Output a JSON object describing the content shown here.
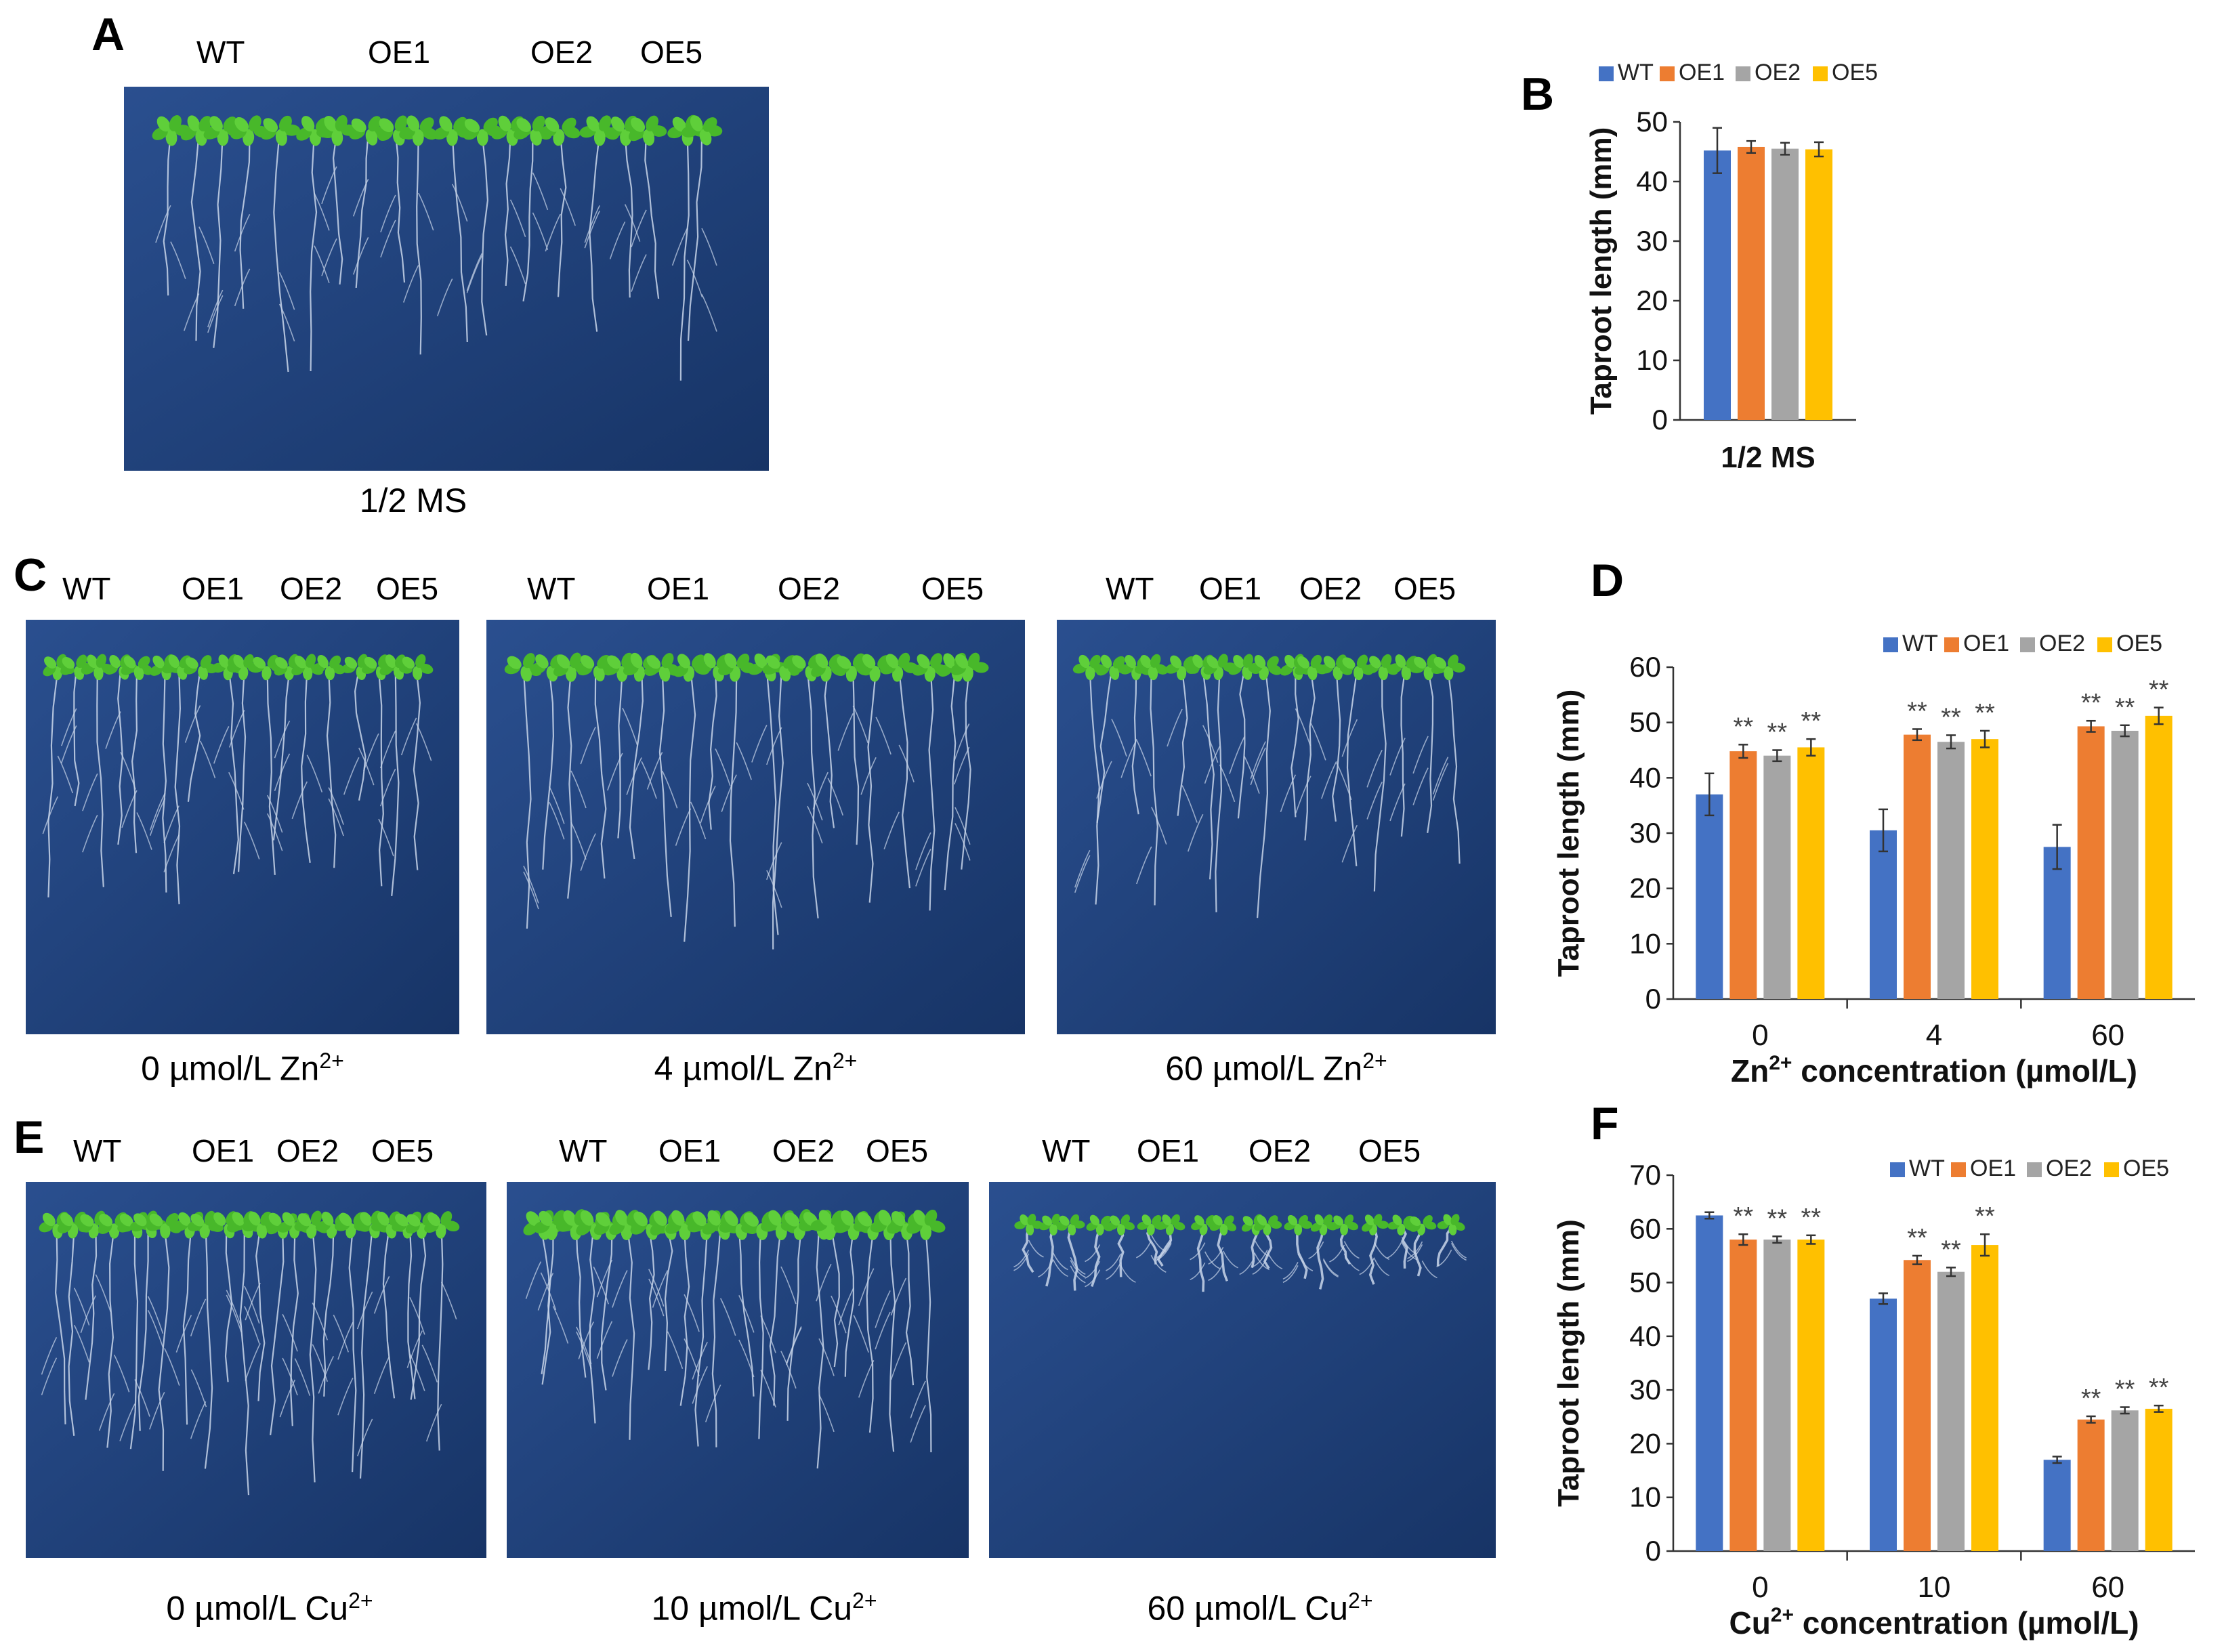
{
  "colors": {
    "wt": "#4472c4",
    "oe1": "#ed7d31",
    "oe2": "#a5a5a5",
    "oe5": "#ffc000",
    "plate": "#1f3f7a"
  },
  "panels": {
    "A": {
      "letter": "A",
      "genotypes": [
        "WT",
        "OE1",
        "OE2",
        "OE5"
      ],
      "caption": "1/2 MS"
    },
    "C": {
      "letter": "C",
      "plates": [
        {
          "genotypes": [
            "WT",
            "OE1",
            "OE2",
            "OE5"
          ],
          "caption_prefix": "0 µmol/L Zn",
          "caption_sup": "2+"
        },
        {
          "genotypes": [
            "WT",
            "OE1",
            "OE2",
            "OE5"
          ],
          "caption_prefix": "4 µmol/L Zn",
          "caption_sup": "2+"
        },
        {
          "genotypes": [
            "WT",
            "OE1",
            "OE2",
            "OE5"
          ],
          "caption_prefix": "60 µmol/L Zn",
          "caption_sup": "2+"
        }
      ]
    },
    "E": {
      "letter": "E",
      "plates": [
        {
          "genotypes": [
            "WT",
            "OE1",
            "OE2",
            "OE5"
          ],
          "caption_prefix": "0 µmol/L Cu",
          "caption_sup": "2+"
        },
        {
          "genotypes": [
            "WT",
            "OE1",
            "OE2",
            "OE5"
          ],
          "caption_prefix": "10 µmol/L Cu",
          "caption_sup": "2+"
        },
        {
          "genotypes": [
            "WT",
            "OE1",
            "OE2",
            "OE5"
          ],
          "caption_prefix": "60 µmol/L Cu",
          "caption_sup": "2+"
        }
      ]
    }
  },
  "chart_data": [
    {
      "id": "B",
      "letter": "B",
      "type": "bar",
      "ylabel": "Taproot length (mm)",
      "xlabel": "",
      "ylim": [
        0,
        50
      ],
      "yticks": [
        0,
        10,
        20,
        30,
        40,
        50
      ],
      "categories": [
        "1/2 MS"
      ],
      "category_bold": true,
      "legend": [
        "WT",
        "OE1",
        "OE2",
        "OE5"
      ],
      "series": [
        {
          "name": "WT",
          "values": [
            45.2
          ],
          "errors": [
            3.8
          ]
        },
        {
          "name": "OE1",
          "values": [
            45.8
          ],
          "errors": [
            1.0
          ]
        },
        {
          "name": "OE2",
          "values": [
            45.5
          ],
          "errors": [
            1.0
          ]
        },
        {
          "name": "OE5",
          "values": [
            45.4
          ],
          "errors": [
            1.2
          ]
        }
      ],
      "significance": [
        [
          "",
          "",
          "",
          ""
        ]
      ]
    },
    {
      "id": "D",
      "letter": "D",
      "type": "bar",
      "ylabel": "Taproot length (mm)",
      "xlabel_prefix": "Zn",
      "xlabel_sup": "2+",
      "xlabel_suffix": " concentration (µmol/L)",
      "ylim": [
        0,
        60
      ],
      "yticks": [
        0,
        10,
        20,
        30,
        40,
        50,
        60
      ],
      "categories": [
        "0",
        "4",
        "60"
      ],
      "legend": [
        "WT",
        "OE1",
        "OE2",
        "OE5"
      ],
      "series": [
        {
          "name": "WT",
          "values": [
            37.0,
            30.5,
            27.5
          ],
          "errors": [
            3.8,
            3.8,
            4.0
          ]
        },
        {
          "name": "OE1",
          "values": [
            44.8,
            47.8,
            49.3
          ],
          "errors": [
            1.2,
            1.0,
            1.0
          ]
        },
        {
          "name": "OE2",
          "values": [
            44.0,
            46.5,
            48.5
          ],
          "errors": [
            1.0,
            1.2,
            1.0
          ]
        },
        {
          "name": "OE5",
          "values": [
            45.5,
            47.0,
            51.2
          ],
          "errors": [
            1.5,
            1.5,
            1.5
          ]
        }
      ],
      "significance": [
        [
          "",
          "**",
          "**",
          "**"
        ],
        [
          "",
          "**",
          "**",
          "**"
        ],
        [
          "",
          "**",
          "**",
          "**"
        ]
      ]
    },
    {
      "id": "F",
      "letter": "F",
      "type": "bar",
      "ylabel": "Taproot length (mm)",
      "xlabel_prefix": "Cu",
      "xlabel_sup": "2+",
      "xlabel_suffix": " concentration (µmol/L)",
      "ylim": [
        0,
        70
      ],
      "yticks": [
        0,
        10,
        20,
        30,
        40,
        50,
        60,
        70
      ],
      "categories": [
        "0",
        "10",
        "60"
      ],
      "legend": [
        "WT",
        "OE1",
        "OE2",
        "OE5"
      ],
      "series": [
        {
          "name": "WT",
          "values": [
            62.5,
            47.0,
            17.0
          ],
          "errors": [
            0.6,
            1.0,
            0.6
          ]
        },
        {
          "name": "OE1",
          "values": [
            58.0,
            54.2,
            24.5
          ],
          "errors": [
            1.0,
            0.8,
            0.6
          ]
        },
        {
          "name": "OE2",
          "values": [
            58.0,
            52.0,
            26.2
          ],
          "errors": [
            0.6,
            0.8,
            0.6
          ]
        },
        {
          "name": "OE5",
          "values": [
            58.0,
            57.0,
            26.5
          ],
          "errors": [
            0.8,
            2.0,
            0.6
          ]
        }
      ],
      "significance": [
        [
          "",
          "**",
          "**",
          "**"
        ],
        [
          "",
          "**",
          "**",
          "**"
        ],
        [
          "",
          "**",
          "**",
          "**"
        ]
      ]
    }
  ]
}
